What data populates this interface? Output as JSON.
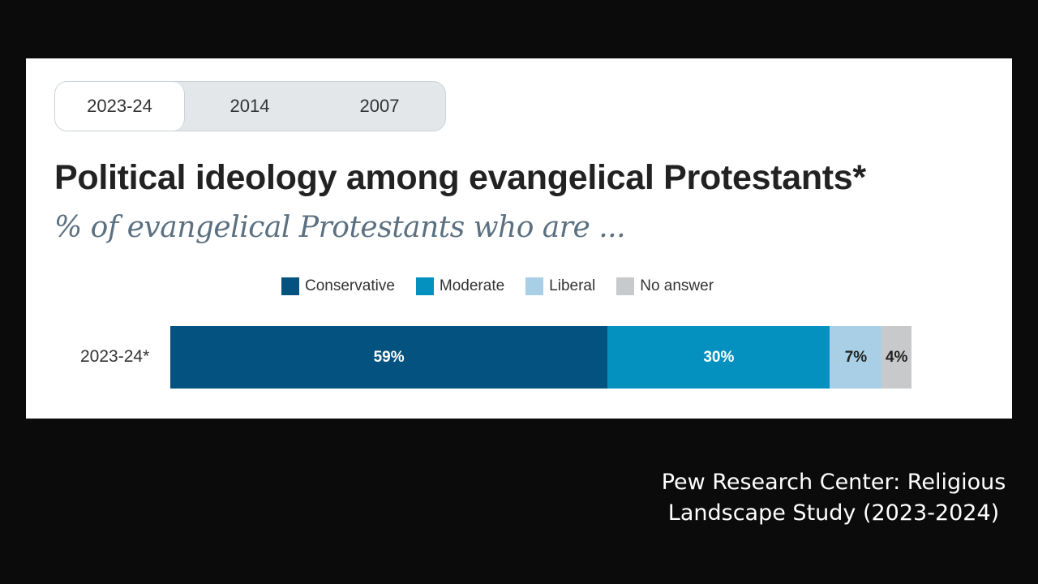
{
  "tabs": [
    {
      "label": "2023-24",
      "active": true
    },
    {
      "label": "2014",
      "active": false
    },
    {
      "label": "2007",
      "active": false
    }
  ],
  "caption": {
    "line1": "Pew Research Center: Religious",
    "line2": "Landscape Study (2023-2024)"
  },
  "chart_data": {
    "type": "bar",
    "orientation": "horizontal-stacked",
    "title": "Political ideology among evangelical Protestants*",
    "subtitle": "% of evangelical Protestants who are ...",
    "categories": [
      "2023-24*"
    ],
    "series": [
      {
        "name": "Conservative",
        "values": [
          59
        ],
        "label": "59%",
        "color": "#04527f"
      },
      {
        "name": "Moderate",
        "values": [
          30
        ],
        "label": "30%",
        "color": "#0591bf"
      },
      {
        "name": "Liberal",
        "values": [
          7
        ],
        "label": "7%",
        "color": "#a8cfe6"
      },
      {
        "name": "No answer",
        "values": [
          4
        ],
        "label": "4%",
        "color": "#c8c9ca"
      }
    ],
    "xlim": [
      0,
      100
    ],
    "legend": "top-center"
  }
}
